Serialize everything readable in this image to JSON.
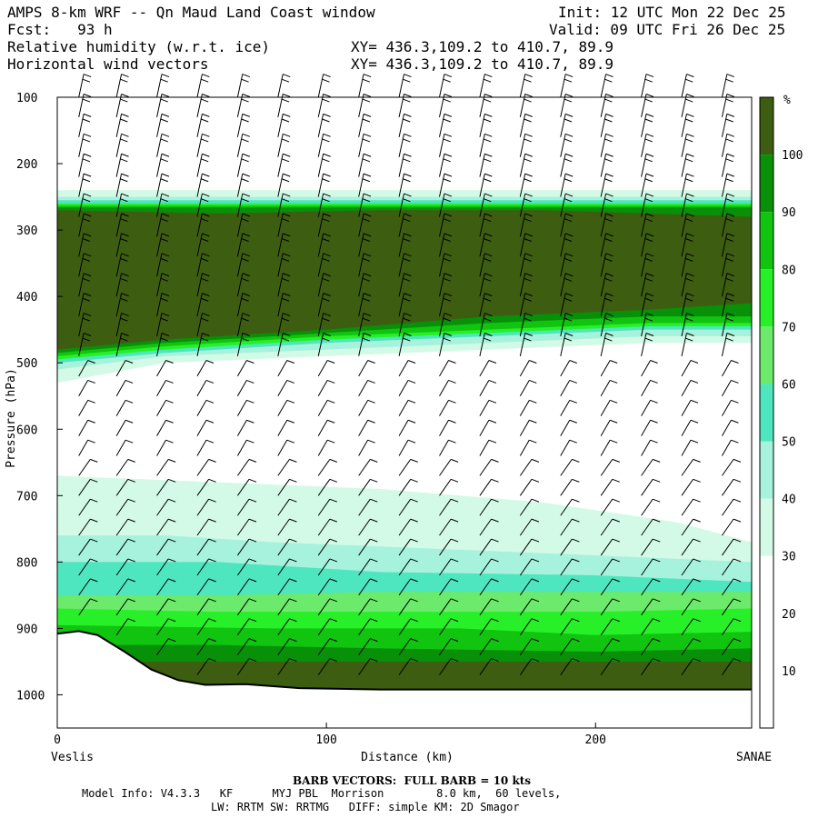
{
  "header": {
    "title": "AMPS 8-km WRF -- Qn Maud Land Coast window",
    "fcst": "Fcst:   93 h",
    "field1": "Relative humidity (w.r.t. ice)",
    "field2": "Horizontal wind vectors",
    "init": "Init: 12 UTC Mon 22 Dec 25",
    "valid": "Valid: 09 UTC Fri 26 Dec 25",
    "xy1": "XY= 436.3,109.2 to 410.7, 89.9",
    "xy2": "XY= 436.3,109.2 to 410.7, 89.9"
  },
  "footer": {
    "barb_note": "BARB VECTORS:  FULL BARB = 10 kts",
    "model_line1": "Model Info: V4.3.3   KF      MYJ PBL  Morrison        8.0 km,  60 levels,",
    "model_line2": "LW: RRTM SW: RRTMG   DIFF: simple KM: 2D Smagor"
  },
  "colors": {
    "rh_30": "#d2fae6",
    "rh_40": "#a6f2dc",
    "rh_50": "#4ee6be",
    "rh_60": "#6cea6c",
    "rh_70": "#28f028",
    "rh_80": "#10c410",
    "rh_90": "#089008",
    "rh_100": "#3d5e10"
  },
  "chart_data": {
    "type": "heatmap",
    "title": "Relative humidity (w.r.t. ice)",
    "xlabel": "Distance (km)",
    "ylabel": "Pressure (hPa)",
    "xlim": [
      0,
      258
    ],
    "ylim": [
      1050,
      100
    ],
    "x_ticks": [
      0,
      100,
      200
    ],
    "y_ticks": [
      100,
      200,
      300,
      400,
      500,
      600,
      700,
      800,
      900,
      1000
    ],
    "x_end_labels": {
      "left": "Veslis",
      "right": "SANAE"
    },
    "colorbar": {
      "unit": "%",
      "levels": [
        10,
        20,
        30,
        40,
        50,
        60,
        70,
        80,
        90,
        100
      ],
      "labels": [
        "10",
        "20",
        "30",
        "40",
        "50",
        "60",
        "70",
        "80",
        "90",
        "100"
      ]
    },
    "terrain_surface_hpa": [
      [
        0,
        908
      ],
      [
        8,
        904
      ],
      [
        15,
        910
      ],
      [
        25,
        935
      ],
      [
        35,
        962
      ],
      [
        45,
        978
      ],
      [
        55,
        985
      ],
      [
        70,
        984
      ],
      [
        90,
        990
      ],
      [
        120,
        992
      ],
      [
        180,
        992
      ],
      [
        258,
        992
      ]
    ],
    "rh_bands": [
      {
        "level": 30,
        "top": [
          [
            0,
            670
          ],
          [
            60,
            680
          ],
          [
            120,
            690
          ],
          [
            180,
            710
          ],
          [
            230,
            740
          ],
          [
            258,
            770
          ]
        ],
        "bottom": [
          [
            0,
            1000
          ],
          [
            258,
            1000
          ]
        ]
      },
      {
        "level": 40,
        "top": [
          [
            0,
            760
          ],
          [
            40,
            760
          ],
          [
            80,
            770
          ],
          [
            140,
            780
          ],
          [
            200,
            790
          ],
          [
            258,
            800
          ]
        ],
        "bottom": [
          [
            0,
            1000
          ],
          [
            258,
            1000
          ]
        ]
      },
      {
        "level": 50,
        "top": [
          [
            0,
            800
          ],
          [
            60,
            800
          ],
          [
            120,
            815
          ],
          [
            200,
            820
          ],
          [
            258,
            830
          ]
        ],
        "bottom": [
          [
            0,
            1000
          ],
          [
            258,
            1000
          ]
        ]
      },
      {
        "level": 60,
        "top": [
          [
            0,
            850
          ],
          [
            60,
            850
          ],
          [
            120,
            845
          ],
          [
            200,
            845
          ],
          [
            258,
            845
          ]
        ],
        "bottom": [
          [
            0,
            1000
          ],
          [
            258,
            1000
          ]
        ]
      },
      {
        "level": 70,
        "top": [
          [
            0,
            870
          ],
          [
            60,
            875
          ],
          [
            120,
            875
          ],
          [
            200,
            875
          ],
          [
            258,
            870
          ]
        ],
        "bottom": [
          [
            0,
            1000
          ],
          [
            258,
            1000
          ]
        ]
      },
      {
        "level": 80,
        "top": [
          [
            0,
            895
          ],
          [
            80,
            900
          ],
          [
            150,
            900
          ],
          [
            200,
            910
          ],
          [
            258,
            905
          ]
        ],
        "bottom": [
          [
            0,
            1000
          ],
          [
            258,
            1000
          ]
        ]
      },
      {
        "level": 90,
        "top": [
          [
            0,
            925
          ],
          [
            60,
            925
          ],
          [
            120,
            930
          ],
          [
            200,
            935
          ],
          [
            258,
            930
          ]
        ],
        "bottom": [
          [
            0,
            1000
          ],
          [
            258,
            1000
          ]
        ]
      },
      {
        "level": 100,
        "top": [
          [
            0,
            950
          ],
          [
            60,
            950
          ],
          [
            120,
            950
          ],
          [
            200,
            950
          ],
          [
            258,
            950
          ]
        ],
        "bottom": [
          [
            0,
            1000
          ],
          [
            258,
            1000
          ]
        ]
      },
      {
        "level": 30,
        "top": [
          [
            0,
            240
          ],
          [
            258,
            240
          ]
        ],
        "bottom": [
          [
            0,
            530
          ],
          [
            40,
            500
          ],
          [
            100,
            490
          ],
          [
            160,
            480
          ],
          [
            220,
            470
          ],
          [
            258,
            470
          ]
        ]
      },
      {
        "level": 40,
        "top": [
          [
            0,
            250
          ],
          [
            258,
            250
          ]
        ],
        "bottom": [
          [
            0,
            510
          ],
          [
            40,
            490
          ],
          [
            100,
            480
          ],
          [
            160,
            470
          ],
          [
            220,
            460
          ],
          [
            258,
            460
          ]
        ]
      },
      {
        "level": 50,
        "top": [
          [
            0,
            255
          ],
          [
            258,
            255
          ]
        ],
        "bottom": [
          [
            0,
            500
          ],
          [
            40,
            485
          ],
          [
            100,
            470
          ],
          [
            160,
            460
          ],
          [
            220,
            450
          ],
          [
            258,
            450
          ]
        ]
      },
      {
        "level": 70,
        "top": [
          [
            0,
            260
          ],
          [
            258,
            260
          ]
        ],
        "bottom": [
          [
            0,
            495
          ],
          [
            40,
            480
          ],
          [
            100,
            465
          ],
          [
            160,
            455
          ],
          [
            220,
            445
          ],
          [
            258,
            445
          ]
        ]
      },
      {
        "level": 80,
        "top": [
          [
            0,
            263
          ],
          [
            258,
            263
          ]
        ],
        "bottom": [
          [
            0,
            490
          ],
          [
            40,
            475
          ],
          [
            100,
            460
          ],
          [
            160,
            450
          ],
          [
            220,
            440
          ],
          [
            258,
            440
          ]
        ]
      },
      {
        "level": 90,
        "top": [
          [
            0,
            266
          ],
          [
            258,
            266
          ]
        ],
        "bottom": [
          [
            0,
            485
          ],
          [
            40,
            470
          ],
          [
            100,
            455
          ],
          [
            160,
            440
          ],
          [
            220,
            430
          ],
          [
            258,
            430
          ]
        ]
      },
      {
        "level": 100,
        "top": [
          [
            0,
            270
          ],
          [
            60,
            275
          ],
          [
            120,
            270
          ],
          [
            180,
            270
          ],
          [
            258,
            280
          ]
        ],
        "bottom": [
          [
            0,
            480
          ],
          [
            40,
            465
          ],
          [
            100,
            450
          ],
          [
            160,
            430
          ],
          [
            220,
            420
          ],
          [
            258,
            410
          ]
        ]
      }
    ],
    "wind_barbs": {
      "x_columns_km": [
        8,
        22,
        37,
        52,
        67,
        82,
        97,
        112,
        127,
        142,
        157,
        172,
        187,
        202,
        217,
        232,
        247
      ],
      "levels_hpa": [
        100,
        130,
        160,
        190,
        220,
        250,
        280,
        310,
        340,
        370,
        400,
        430,
        460,
        490,
        520,
        550,
        580,
        610,
        640,
        670,
        700,
        730,
        760,
        790,
        820,
        850,
        880,
        910,
        940,
        970
      ]
    }
  }
}
